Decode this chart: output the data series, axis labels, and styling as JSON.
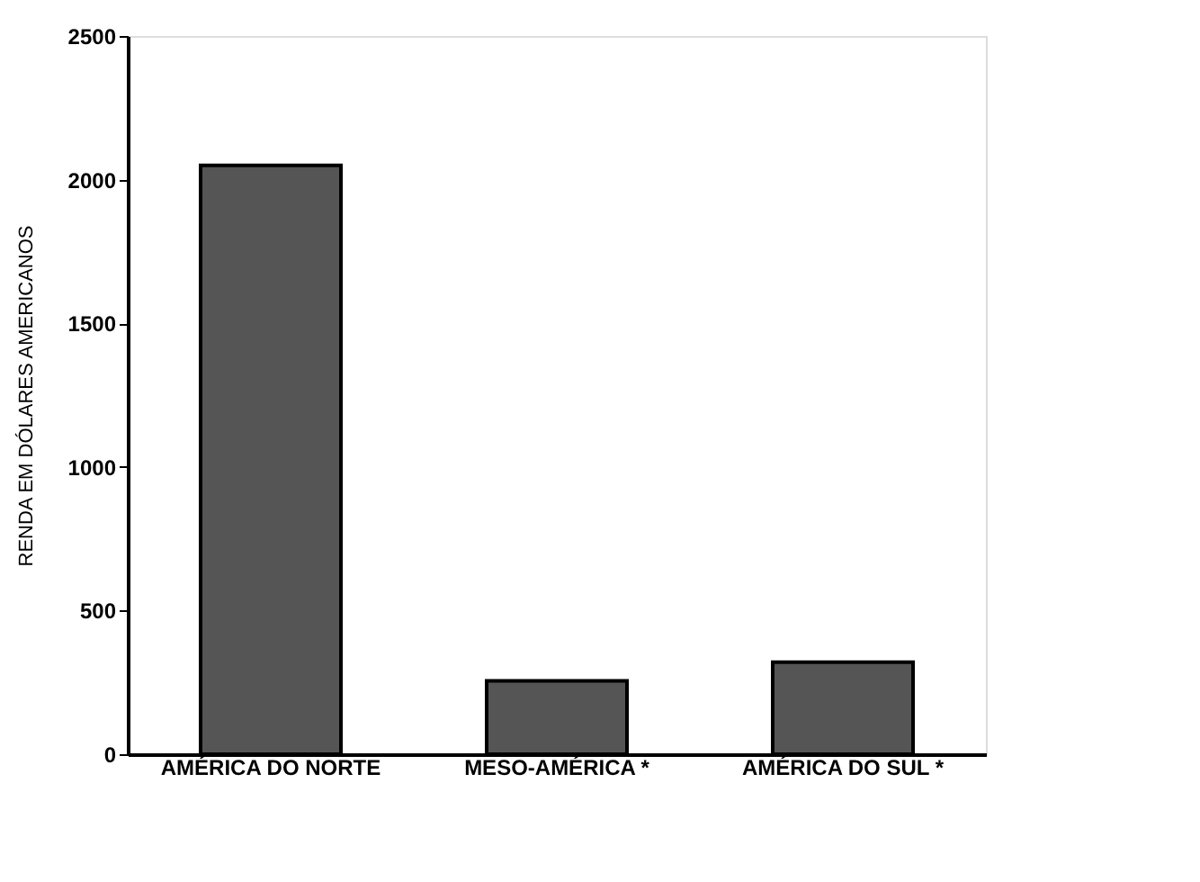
{
  "chart_data": {
    "type": "bar",
    "ylabel": "RENDA EM DÓLARES AMERICANOS",
    "categories": [
      "AMÉRICA DO NORTE",
      "MESO-AMÉRICA *",
      "AMÉRICA DO SUL *"
    ],
    "values": [
      2050,
      255,
      320
    ],
    "color": "#555555",
    "ylim": [
      0,
      2500
    ],
    "yticks": [
      0,
      500,
      1000,
      1500,
      2000,
      2500
    ],
    "grid": false
  }
}
